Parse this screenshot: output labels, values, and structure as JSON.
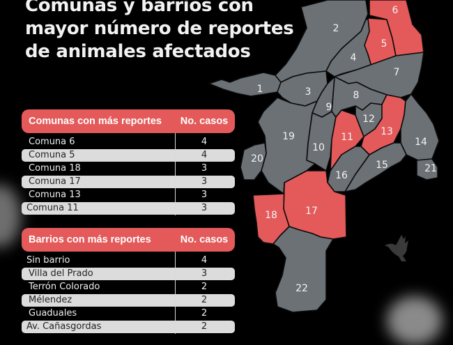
{
  "title": {
    "line1": "Comunas y barrios con",
    "line2": "mayor número de reportes",
    "line3": "de animales afectados"
  },
  "colors": {
    "highlight": "#e45a5a",
    "comuna_default": "#6b7175",
    "background": "#000000",
    "row_light": "#dcdcdc"
  },
  "comunas_table": {
    "header_name": "Comunas con más reportes",
    "header_count": "No. casos",
    "rows": [
      {
        "name": "Comuna 6",
        "count": "4"
      },
      {
        "name": "Comuna 5",
        "count": "4"
      },
      {
        "name": "Comuna 18",
        "count": "3"
      },
      {
        "name": "Comuna 17",
        "count": "3"
      },
      {
        "name": "Comuna 13",
        "count": "3"
      },
      {
        "name": "Comuna 11",
        "count": "3"
      }
    ]
  },
  "barrios_table": {
    "header_name": "Barrios con más reportes",
    "header_count": "No. casos",
    "rows": [
      {
        "name": "Sin barrio",
        "count": "4"
      },
      {
        "name": "Villa del Prado",
        "count": "3"
      },
      {
        "name": "Terrón Colorado",
        "count": "2"
      },
      {
        "name": "Mélendez",
        "count": "2"
      },
      {
        "name": "Guaduales",
        "count": "2"
      },
      {
        "name": "Av. Cañasgordas",
        "count": "2"
      }
    ]
  },
  "map": {
    "comunas": [
      {
        "id": "1",
        "highlighted": false
      },
      {
        "id": "2",
        "highlighted": false
      },
      {
        "id": "3",
        "highlighted": false
      },
      {
        "id": "4",
        "highlighted": false
      },
      {
        "id": "5",
        "highlighted": true
      },
      {
        "id": "6",
        "highlighted": true
      },
      {
        "id": "7",
        "highlighted": false
      },
      {
        "id": "8",
        "highlighted": false
      },
      {
        "id": "9",
        "highlighted": false
      },
      {
        "id": "10",
        "highlighted": false
      },
      {
        "id": "11",
        "highlighted": true
      },
      {
        "id": "12",
        "highlighted": false
      },
      {
        "id": "13",
        "highlighted": true
      },
      {
        "id": "14",
        "highlighted": false
      },
      {
        "id": "15",
        "highlighted": false
      },
      {
        "id": "16",
        "highlighted": false
      },
      {
        "id": "17",
        "highlighted": true
      },
      {
        "id": "18",
        "highlighted": true
      },
      {
        "id": "19",
        "highlighted": false
      },
      {
        "id": "20",
        "highlighted": false
      },
      {
        "id": "21",
        "highlighted": false
      },
      {
        "id": "22",
        "highlighted": false
      }
    ]
  },
  "decorations": {
    "bird": "bird-silhouette-icon",
    "smoke": "smoke-cloud"
  }
}
